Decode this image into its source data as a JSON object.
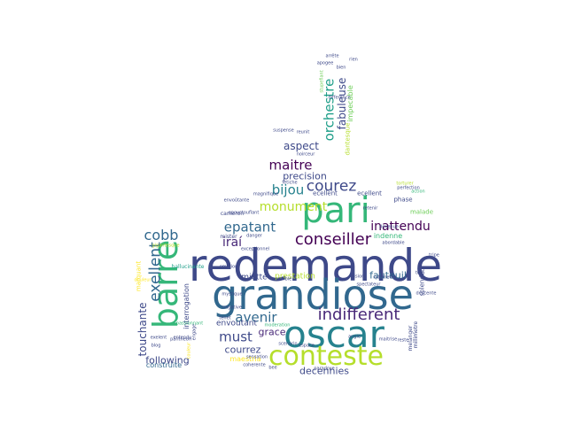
{
  "colors": [
    "#440154",
    "#482878",
    "#3e4989",
    "#31688e",
    "#26828e",
    "#1f9e89",
    "#35b779",
    "#6ece58",
    "#b5de2b",
    "#fde725"
  ],
  "words": [
    {
      "text": "redemande",
      "color": "#3e4989"
    },
    {
      "text": "grandiose",
      "color": "#31688e"
    },
    {
      "text": "oscar",
      "color": "#26828e"
    },
    {
      "text": "pari",
      "color": "#35b779"
    },
    {
      "text": "barre",
      "color": "#35b779"
    },
    {
      "text": "conteste",
      "color": "#b5de2b"
    },
    {
      "text": "indifferent",
      "color": "#482878"
    },
    {
      "text": "conseiller",
      "color": "#440154"
    },
    {
      "text": "courez",
      "color": "#3e4989"
    },
    {
      "text": "maitre",
      "color": "#440154"
    },
    {
      "text": "avenir",
      "color": "#31688e"
    },
    {
      "text": "must",
      "color": "#3e4989"
    },
    {
      "text": "exellent",
      "color": "#31688e"
    },
    {
      "text": "epatant",
      "color": "#31688e"
    },
    {
      "text": "inattendu",
      "color": "#440154"
    },
    {
      "text": "orchestre",
      "color": "#1f9e89"
    },
    {
      "text": "bijou",
      "color": "#26828e"
    },
    {
      "text": "monument",
      "color": "#b5de2b"
    },
    {
      "text": "cobb",
      "color": "#31688e"
    },
    {
      "text": "fabuleuse",
      "color": "#3e4989"
    },
    {
      "text": "aspect",
      "color": "#3e4989"
    },
    {
      "text": "iraí",
      "color": "#482878"
    },
    {
      "text": "touchante",
      "color": "#3e4989"
    },
    {
      "text": "courrez",
      "color": "#3e4989"
    },
    {
      "text": "grace",
      "color": "#482878"
    },
    {
      "text": "decennies",
      "color": "#3e4989"
    },
    {
      "text": "fauteuil",
      "color": "#31688e"
    },
    {
      "text": "precision",
      "color": "#3e4989"
    },
    {
      "text": "envoutant",
      "color": "#3e4989"
    },
    {
      "text": "following",
      "color": "#3e4989"
    },
    {
      "text": "construite",
      "color": "#31688e"
    },
    {
      "text": "interrogation",
      "color": "#3e4989"
    },
    {
      "text": "miette",
      "color": "#3e4989"
    },
    {
      "text": "prestation",
      "color": "#b5de2b"
    },
    {
      "text": "maestria",
      "color": "#fde725"
    },
    {
      "text": "impecable",
      "color": "#6ece58"
    },
    {
      "text": "dantesque",
      "color": "#b5de2b"
    },
    {
      "text": "marquant",
      "color": "#fde725"
    },
    {
      "text": "ecellent",
      "color": "#3e4989"
    },
    {
      "text": "ecellent",
      "color": "#3e4989"
    },
    {
      "text": "indenne",
      "color": "#35b779"
    },
    {
      "text": "splendeur",
      "color": "#3e4989"
    },
    {
      "text": "melanger",
      "color": "#3e4989"
    },
    {
      "text": "millimetre",
      "color": "#3e4989"
    },
    {
      "text": "phase",
      "color": "#3e4989"
    },
    {
      "text": "malade",
      "color": "#6ece58"
    },
    {
      "text": "cameron",
      "color": "#3e4989"
    },
    {
      "text": "mister",
      "color": "#3e4989"
    },
    {
      "text": "hallucinante",
      "color": "#1f9e89"
    },
    {
      "text": "gigantesque",
      "color": "#b5de2b"
    },
    {
      "text": "vision",
      "color": "#3e4989"
    },
    {
      "text": "rythmee",
      "color": "#3e4989"
    },
    {
      "text": "arrête",
      "color": "#3e4989"
    },
    {
      "text": "apogee",
      "color": "#3e4989"
    },
    {
      "text": "stupefiant",
      "color": "#6ece58"
    },
    {
      "text": "reunit",
      "color": "#3e4989"
    },
    {
      "text": "noirceur",
      "color": "#3e4989"
    },
    {
      "text": "epoustouflant",
      "color": "#3e4989"
    },
    {
      "text": "torturer",
      "color": "#b5de2b"
    },
    {
      "text": "danger",
      "color": "#3e4989"
    },
    {
      "text": "moderation",
      "color": "#35b779"
    },
    {
      "text": "spectateur",
      "color": "#3e4989"
    },
    {
      "text": "descente",
      "color": "#3e4989"
    },
    {
      "text": "devenue",
      "color": "#3e4989"
    },
    {
      "text": "abordable",
      "color": "#3e4989"
    },
    {
      "text": "tripe",
      "color": "#3e4989"
    },
    {
      "text": "entendu",
      "color": "#3e4989"
    },
    {
      "text": "pantheon",
      "color": "#3e4989"
    },
    {
      "text": "blog",
      "color": "#3e4989"
    },
    {
      "text": "exelent",
      "color": "#3e4989"
    },
    {
      "text": "tenet",
      "color": "#3e4989"
    },
    {
      "text": "negative",
      "color": "#3e4989"
    },
    {
      "text": "coherente",
      "color": "#3e4989"
    },
    {
      "text": "espace",
      "color": "#3e4989"
    },
    {
      "text": "paradoxe",
      "color": "#3e4989"
    },
    {
      "text": "bee",
      "color": "#3e4989"
    },
    {
      "text": "mystique",
      "color": "#3e4989"
    },
    {
      "text": "angle",
      "color": "#3e4989"
    },
    {
      "text": "fetiche",
      "color": "#3e4989"
    },
    {
      "text": "envoûtante",
      "color": "#3e4989"
    },
    {
      "text": "action",
      "color": "#35b779"
    },
    {
      "text": "retenir",
      "color": "#3e4989"
    },
    {
      "text": "reste",
      "color": "#3e4989"
    },
    {
      "text": "couleur",
      "color": "#fde725"
    },
    {
      "text": "douleur",
      "color": "#fde725"
    },
    {
      "text": "engage",
      "color": "#3e4989"
    },
    {
      "text": "passionnant",
      "color": "#35b779"
    },
    {
      "text": "bien",
      "color": "#3e4989"
    },
    {
      "text": "difference",
      "color": "#3e4989"
    },
    {
      "text": "suspense",
      "color": "#3e4989"
    },
    {
      "text": "magnifique",
      "color": "#3e4989"
    },
    {
      "text": "exceptionnel",
      "color": "#3e4989"
    },
    {
      "text": "sensation",
      "color": "#3e4989"
    },
    {
      "text": "ensemble",
      "color": "#3e4989"
    },
    {
      "text": "emotion",
      "color": "#3e4989"
    },
    {
      "text": "tete",
      "color": "#3e4989"
    },
    {
      "text": "scenario",
      "color": "#3e4989"
    },
    {
      "text": "maitrise",
      "color": "#3e4989"
    },
    {
      "text": "rien",
      "color": "#3e4989"
    },
    {
      "text": "perfection",
      "color": "#3e4989"
    }
  ]
}
